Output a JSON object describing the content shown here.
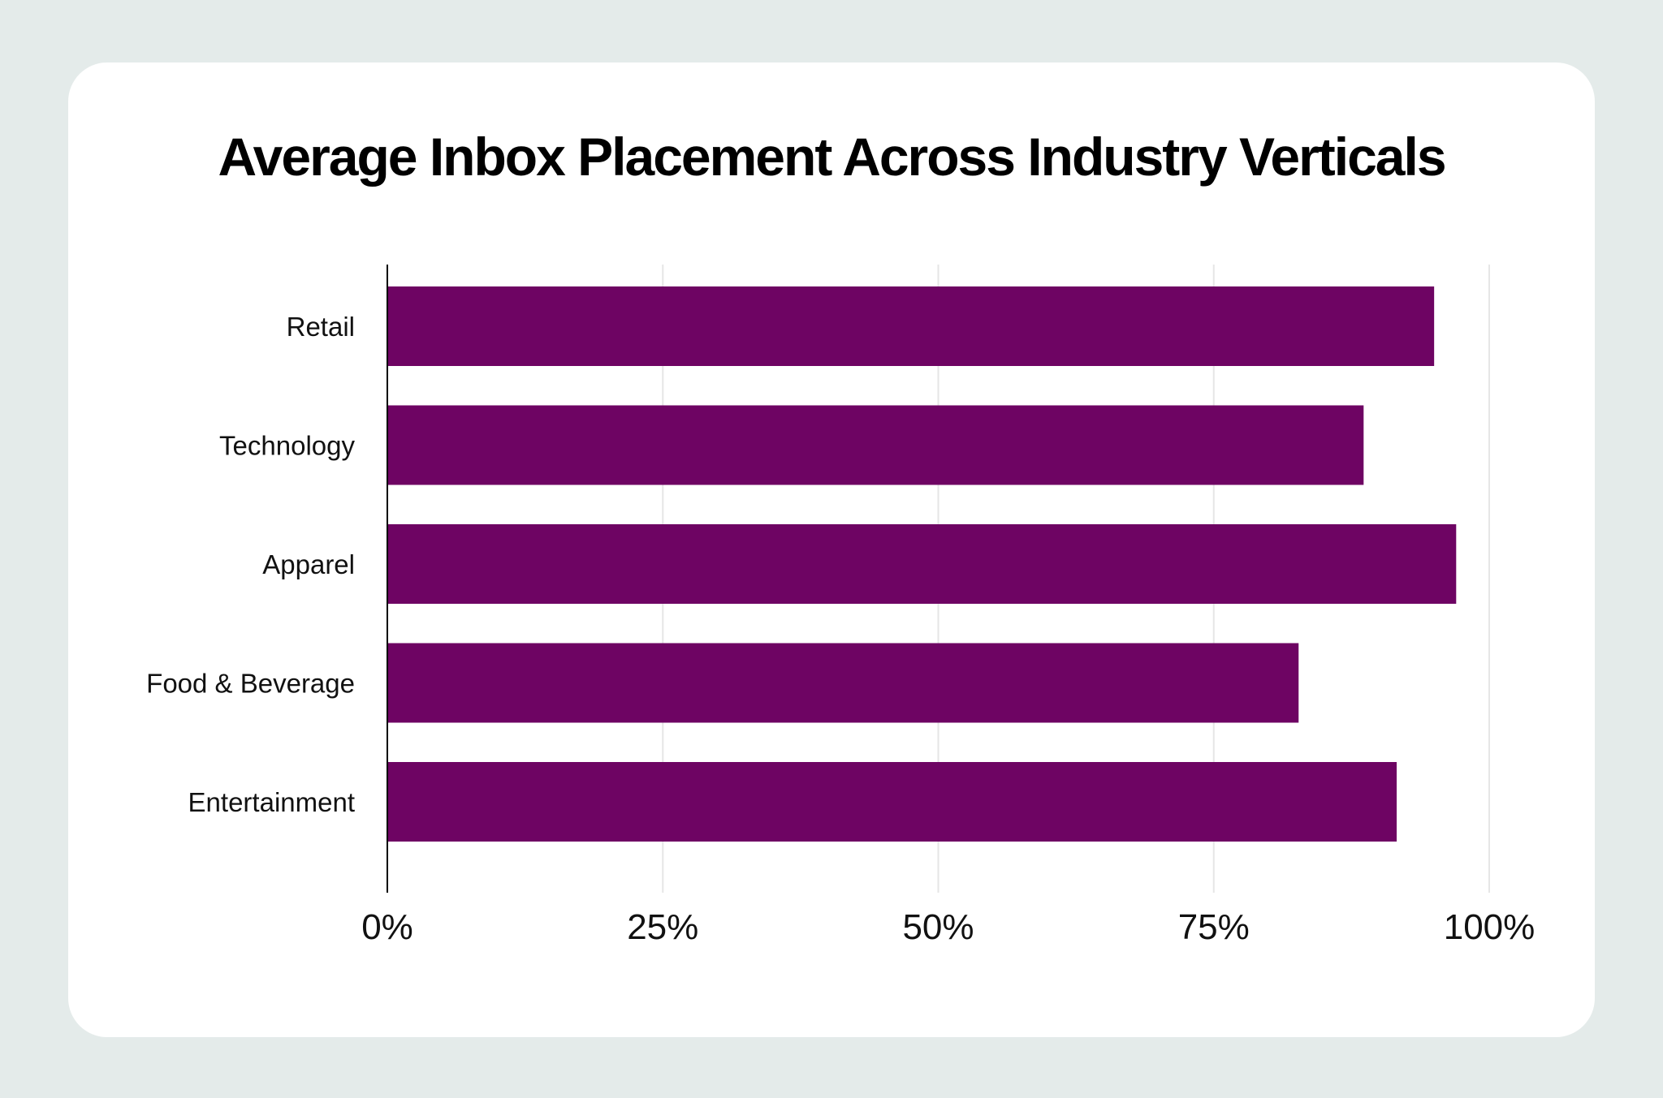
{
  "chart_data": {
    "type": "bar",
    "orientation": "horizontal",
    "title": "Average Inbox Placement Across Industry Verticals",
    "xlabel": "",
    "ylabel": "",
    "categories": [
      "Retail",
      "Technology",
      "Apparel",
      "Food & Beverage",
      "Entertainment"
    ],
    "values": [
      95,
      88.6,
      97,
      82.7,
      91.6
    ],
    "xlim": [
      0,
      100
    ],
    "ticks": [
      0,
      25,
      50,
      75,
      100
    ],
    "tick_labels": [
      "0%",
      "25%",
      "50%",
      "75%",
      "100%"
    ],
    "grid": true,
    "legend": "none",
    "bar_color": "#6e0463",
    "gridline_color": "#e6e6e6",
    "axis_color": "#000000"
  }
}
